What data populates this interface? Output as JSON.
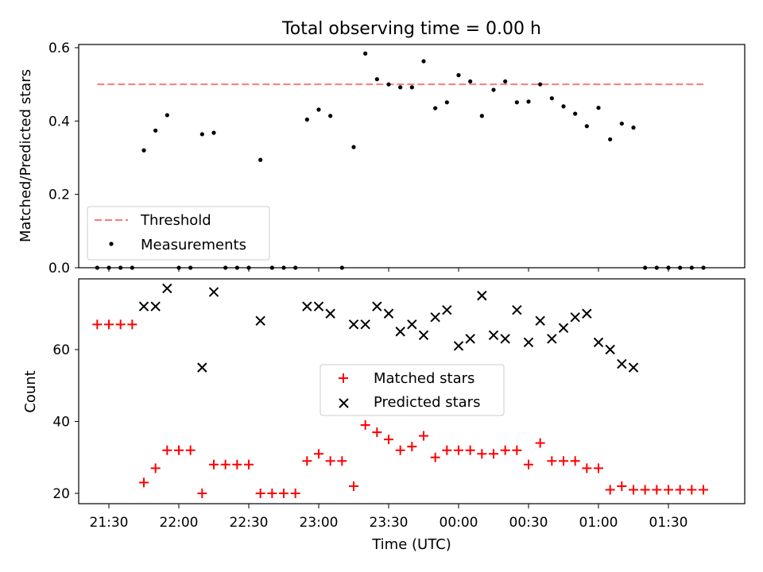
{
  "chart_data": [
    {
      "type": "scatter",
      "title": "Total observing time = 0.00 h",
      "xlabel": "",
      "ylabel": "Matched/Predicted stars",
      "ylim": [
        0,
        0.615
      ],
      "yticks": [
        "0.0",
        "0.2",
        "0.4",
        "0.6"
      ],
      "legend": {
        "placement": "lower-left",
        "entries": [
          "Threshold",
          "Measurements"
        ]
      },
      "threshold": {
        "name": "Threshold",
        "value": 0.5,
        "color": "#f87c7c",
        "x_start": "21:25",
        "x_end": "01:45"
      },
      "series": [
        {
          "name": "Measurements",
          "color": "#000000",
          "points": [
            [
              "21:25",
              0
            ],
            [
              "21:30",
              0
            ],
            [
              "21:35",
              0
            ],
            [
              "21:40",
              0
            ],
            [
              "21:45",
              0.32
            ],
            [
              "21:50",
              0.374
            ],
            [
              "21:55",
              0.416
            ],
            [
              "22:00",
              0
            ],
            [
              "22:05",
              0
            ],
            [
              "22:10",
              0.364
            ],
            [
              "22:15",
              0.368
            ],
            [
              "22:20",
              0
            ],
            [
              "22:25",
              0
            ],
            [
              "22:30",
              0
            ],
            [
              "22:35",
              0.294
            ],
            [
              "22:40",
              0
            ],
            [
              "22:45",
              0
            ],
            [
              "22:50",
              0
            ],
            [
              "22:55",
              0.404
            ],
            [
              "23:00",
              0.431
            ],
            [
              "23:05",
              0.414
            ],
            [
              "23:10",
              0
            ],
            [
              "23:15",
              0.329
            ],
            [
              "23:20",
              0.584
            ],
            [
              "23:25",
              0.514
            ],
            [
              "23:30",
              0.5
            ],
            [
              "23:35",
              0.492
            ],
            [
              "23:40",
              0.492
            ],
            [
              "23:45",
              0.563
            ],
            [
              "23:50",
              0.435
            ],
            [
              "23:55",
              0.451
            ],
            [
              "00:00",
              0.525
            ],
            [
              "00:05",
              0.508
            ],
            [
              "00:10",
              0.414
            ],
            [
              "00:15",
              0.485
            ],
            [
              "00:20",
              0.508
            ],
            [
              "00:25",
              0.451
            ],
            [
              "00:30",
              0.453
            ],
            [
              "00:35",
              0.5
            ],
            [
              "00:40",
              0.462
            ],
            [
              "00:45",
              0.44
            ],
            [
              "00:50",
              0.42
            ],
            [
              "00:55",
              0.386
            ],
            [
              "01:00",
              0.436
            ],
            [
              "01:05",
              0.35
            ],
            [
              "01:10",
              0.393
            ],
            [
              "01:15",
              0.382
            ],
            [
              "01:20",
              0
            ],
            [
              "01:25",
              0
            ],
            [
              "01:30",
              0
            ],
            [
              "01:35",
              0
            ],
            [
              "01:40",
              0
            ],
            [
              "01:45",
              0
            ]
          ]
        }
      ]
    },
    {
      "type": "scatter",
      "xlabel": "Time (UTC)",
      "ylabel": "Count",
      "ylim": [
        17,
        80
      ],
      "yticks": [
        "20",
        "40",
        "60"
      ],
      "xticks": [
        "21:30",
        "22:00",
        "22:30",
        "23:00",
        "23:30",
        "00:00",
        "00:30",
        "01:00",
        "01:30"
      ],
      "legend": {
        "placement": "center",
        "entries": [
          "Matched stars",
          "Predicted stars"
        ]
      },
      "series": [
        {
          "name": "Matched stars",
          "marker": "plus",
          "color": "#ff0000",
          "points": [
            [
              "21:25",
              67
            ],
            [
              "21:30",
              67
            ],
            [
              "21:35",
              67
            ],
            [
              "21:40",
              67
            ],
            [
              "21:45",
              23
            ],
            [
              "21:50",
              27
            ],
            [
              "21:55",
              32
            ],
            [
              "22:00",
              32
            ],
            [
              "22:05",
              32
            ],
            [
              "22:10",
              20
            ],
            [
              "22:15",
              28
            ],
            [
              "22:20",
              28
            ],
            [
              "22:25",
              28
            ],
            [
              "22:30",
              28
            ],
            [
              "22:35",
              20
            ],
            [
              "22:40",
              20
            ],
            [
              "22:45",
              20
            ],
            [
              "22:50",
              20
            ],
            [
              "22:55",
              29
            ],
            [
              "23:00",
              31
            ],
            [
              "23:05",
              29
            ],
            [
              "23:10",
              29
            ],
            [
              "23:15",
              22
            ],
            [
              "23:20",
              39
            ],
            [
              "23:25",
              37
            ],
            [
              "23:30",
              35
            ],
            [
              "23:35",
              32
            ],
            [
              "23:40",
              33
            ],
            [
              "23:45",
              36
            ],
            [
              "23:50",
              30
            ],
            [
              "23:55",
              32
            ],
            [
              "00:00",
              32
            ],
            [
              "00:05",
              32
            ],
            [
              "00:10",
              31
            ],
            [
              "00:15",
              31
            ],
            [
              "00:20",
              32
            ],
            [
              "00:25",
              32
            ],
            [
              "00:30",
              28
            ],
            [
              "00:35",
              34
            ],
            [
              "00:40",
              29
            ],
            [
              "00:45",
              29
            ],
            [
              "00:50",
              29
            ],
            [
              "00:55",
              27
            ],
            [
              "01:00",
              27
            ],
            [
              "01:05",
              21
            ],
            [
              "01:10",
              22
            ],
            [
              "01:15",
              21
            ],
            [
              "01:20",
              21
            ],
            [
              "01:25",
              21
            ],
            [
              "01:30",
              21
            ],
            [
              "01:35",
              21
            ],
            [
              "01:40",
              21
            ],
            [
              "01:45",
              21
            ]
          ]
        },
        {
          "name": "Predicted stars",
          "marker": "x",
          "color": "#000000",
          "points": [
            [
              "21:45",
              72
            ],
            [
              "21:50",
              72
            ],
            [
              "21:55",
              77
            ],
            [
              "22:10",
              55
            ],
            [
              "22:15",
              76
            ],
            [
              "22:35",
              68
            ],
            [
              "22:55",
              72
            ],
            [
              "23:00",
              72
            ],
            [
              "23:05",
              70
            ],
            [
              "23:15",
              67
            ],
            [
              "23:20",
              67
            ],
            [
              "23:25",
              72
            ],
            [
              "23:30",
              70
            ],
            [
              "23:35",
              65
            ],
            [
              "23:40",
              67
            ],
            [
              "23:45",
              64
            ],
            [
              "23:50",
              69
            ],
            [
              "23:55",
              71
            ],
            [
              "00:00",
              61
            ],
            [
              "00:05",
              63
            ],
            [
              "00:10",
              75
            ],
            [
              "00:15",
              64
            ],
            [
              "00:20",
              63
            ],
            [
              "00:25",
              71
            ],
            [
              "00:30",
              62
            ],
            [
              "00:35",
              68
            ],
            [
              "00:40",
              63
            ],
            [
              "00:45",
              66
            ],
            [
              "00:50",
              69
            ],
            [
              "00:55",
              70
            ],
            [
              "01:00",
              62
            ],
            [
              "01:05",
              60
            ],
            [
              "01:10",
              56
            ],
            [
              "01:15",
              55
            ]
          ]
        }
      ]
    }
  ]
}
